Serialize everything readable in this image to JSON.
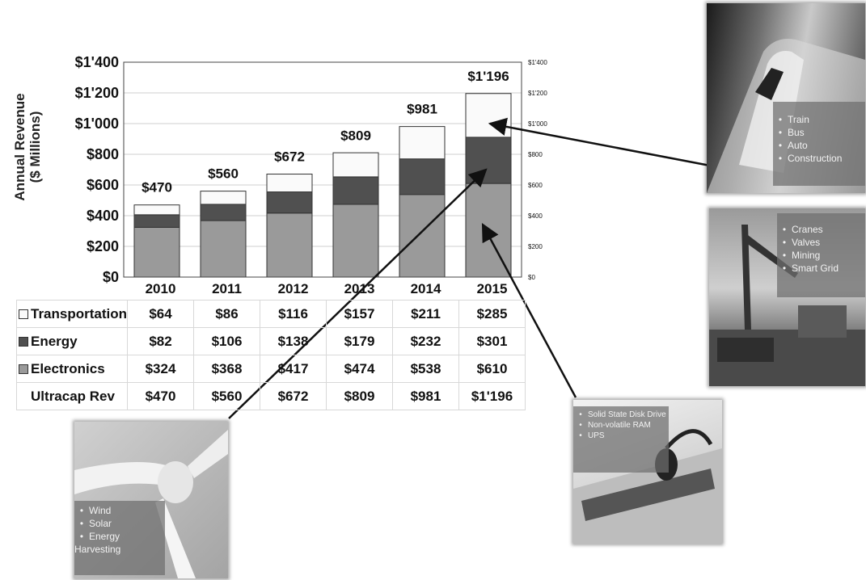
{
  "chart_data": {
    "type": "bar",
    "stacked": true,
    "categories": [
      "2010",
      "2011",
      "2012",
      "2013",
      "2014",
      "2015"
    ],
    "series": [
      {
        "name": "Electronics",
        "values": [
          324,
          368,
          417,
          474,
          538,
          610
        ],
        "color": "#9a9a9a"
      },
      {
        "name": "Energy",
        "values": [
          82,
          106,
          138,
          179,
          232,
          301
        ],
        "color": "#505050"
      },
      {
        "name": "Transportation",
        "values": [
          64,
          86,
          116,
          157,
          211,
          285
        ],
        "color": "#fafafa"
      }
    ],
    "totals": [
      470,
      560,
      672,
      809,
      981,
      1196
    ],
    "total_labels": [
      "$470",
      "$560",
      "$672",
      "$809",
      "$981",
      "$1'196"
    ],
    "ylabel": "Annual Revenue ($ Millions)",
    "ylim": [
      0,
      1400
    ],
    "y_ticks_left": [
      "$0",
      "$200",
      "$400",
      "$600",
      "$800",
      "$1'000",
      "$1'200",
      "$1'400"
    ],
    "y_ticks_right": [
      "$0",
      "$200",
      "$400",
      "$600",
      "$800",
      "$1'000",
      "$1'200",
      "$1'400"
    ],
    "grid": true
  },
  "table": {
    "rows": [
      {
        "label": "Transportation",
        "values": [
          "$64",
          "$86",
          "$116",
          "$157",
          "$211",
          "$285"
        ]
      },
      {
        "label": "Energy",
        "values": [
          "$82",
          "$106",
          "$138",
          "$179",
          "$232",
          "$301"
        ]
      },
      {
        "label": "Electronics",
        "values": [
          "$324",
          "$368",
          "$417",
          "$474",
          "$538",
          "$610"
        ]
      },
      {
        "label": "Ultracap Rev",
        "values": [
          "$470",
          "$560",
          "$672",
          "$809",
          "$981",
          "$1'196"
        ]
      }
    ]
  },
  "photos": {
    "transport": {
      "items": [
        "Train",
        "Bus",
        "Auto",
        "Construction"
      ]
    },
    "energy_grid": {
      "items": [
        "Cranes",
        "Valves",
        "Mining",
        "Smart Grid"
      ]
    },
    "electronics": {
      "items": [
        "Solid State Disk Drive",
        "Non-volatile RAM",
        "UPS"
      ]
    },
    "renewables": {
      "items": [
        "Wind",
        "Solar",
        "Energy Harvesting"
      ]
    }
  }
}
